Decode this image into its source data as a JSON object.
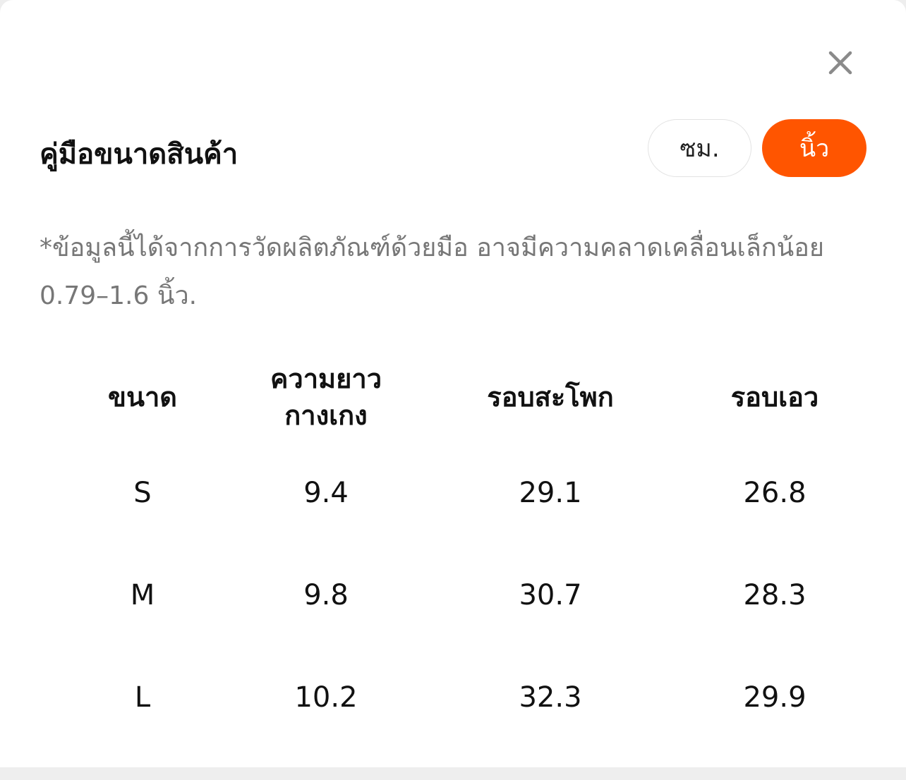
{
  "dialog": {
    "title": "คู่มือขนาดสินค้า",
    "close_icon": "close-icon",
    "unit_toggle": {
      "cm_label": "ซม.",
      "inch_label": "นิ้ว",
      "selected": "นิ้ว",
      "accent_color": "#ff5500"
    },
    "note": "*ข้อมูลนี้ได้จากการวัดผลิตภัณฑ์ด้วยมือ อาจมีความคลาดเคลื่อนเล็กน้อย 0.79–1.6 นิ้ว."
  },
  "table": {
    "headers": [
      "ขนาด",
      "ความยาวกางเกง",
      "รอบสะโพก",
      "รอบเอว"
    ],
    "rows": [
      [
        "S",
        "9.4",
        "29.1",
        "26.8"
      ],
      [
        "M",
        "9.8",
        "30.7",
        "28.3"
      ],
      [
        "L",
        "10.2",
        "32.3",
        "29.9"
      ]
    ]
  }
}
